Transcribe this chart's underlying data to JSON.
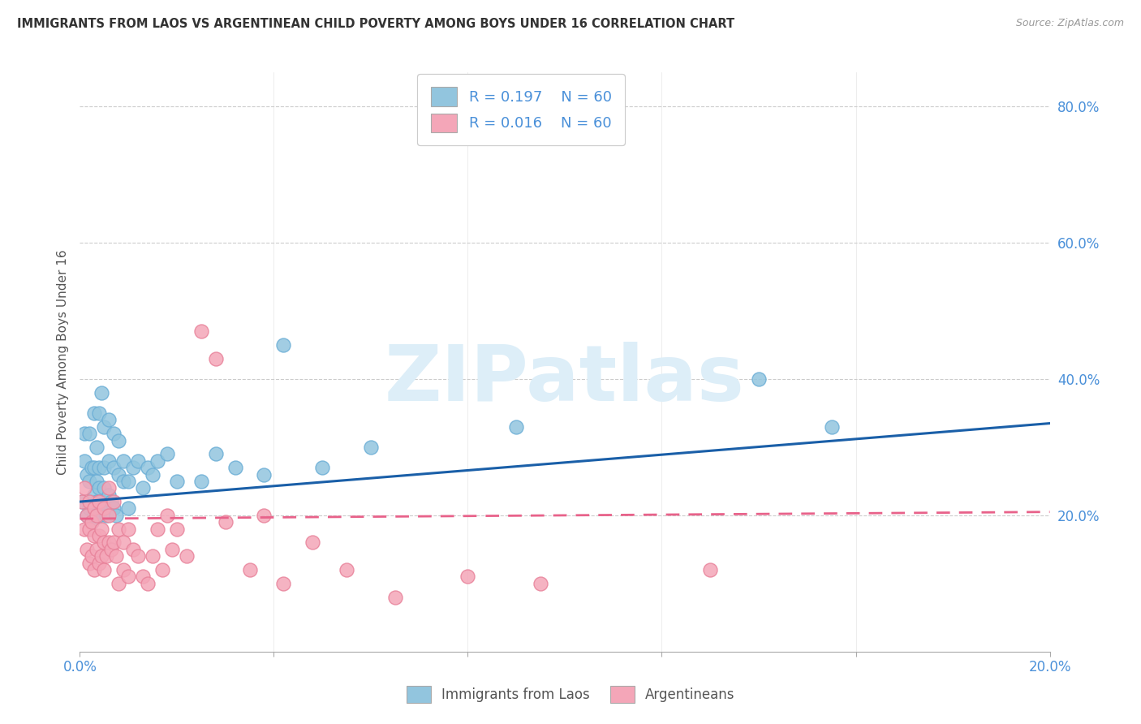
{
  "title": "IMMIGRANTS FROM LAOS VS ARGENTINEAN CHILD POVERTY AMONG BOYS UNDER 16 CORRELATION CHART",
  "source": "Source: ZipAtlas.com",
  "ylabel": "Child Poverty Among Boys Under 16",
  "xlim": [
    0.0,
    0.2
  ],
  "ylim": [
    0.0,
    0.85
  ],
  "blue_color": "#92c5de",
  "blue_color_edge": "#6baed6",
  "pink_color": "#f4a6b8",
  "pink_color_edge": "#e8829a",
  "blue_line_color": "#1a5fa8",
  "pink_line_color": "#e8628a",
  "watermark_text": "ZIPatlas",
  "watermark_color": "#ddeef8",
  "legend_label_blue": "Immigrants from Laos",
  "legend_label_pink": "Argentineans",
  "legend_r_blue": "R = 0.197",
  "legend_n_blue": "N = 60",
  "legend_r_pink": "R = 0.016",
  "legend_n_pink": "N = 60",
  "grid_color": "#cccccc",
  "background_color": "#ffffff",
  "tick_color": "#4a90d9",
  "blue_scatter_x": [
    0.0005,
    0.001,
    0.001,
    0.0015,
    0.0015,
    0.002,
    0.002,
    0.002,
    0.0025,
    0.0025,
    0.003,
    0.003,
    0.003,
    0.003,
    0.0035,
    0.0035,
    0.0035,
    0.004,
    0.004,
    0.004,
    0.004,
    0.0045,
    0.0045,
    0.005,
    0.005,
    0.005,
    0.005,
    0.0055,
    0.006,
    0.006,
    0.006,
    0.0065,
    0.007,
    0.007,
    0.007,
    0.0075,
    0.008,
    0.008,
    0.009,
    0.009,
    0.01,
    0.01,
    0.011,
    0.012,
    0.013,
    0.014,
    0.015,
    0.016,
    0.018,
    0.02,
    0.025,
    0.028,
    0.032,
    0.038,
    0.042,
    0.05,
    0.06,
    0.09,
    0.14,
    0.155
  ],
  "blue_scatter_y": [
    0.22,
    0.28,
    0.32,
    0.2,
    0.26,
    0.21,
    0.25,
    0.32,
    0.19,
    0.27,
    0.2,
    0.23,
    0.27,
    0.35,
    0.22,
    0.25,
    0.3,
    0.2,
    0.24,
    0.27,
    0.35,
    0.22,
    0.38,
    0.21,
    0.24,
    0.27,
    0.33,
    0.2,
    0.23,
    0.28,
    0.34,
    0.22,
    0.21,
    0.27,
    0.32,
    0.2,
    0.26,
    0.31,
    0.25,
    0.28,
    0.21,
    0.25,
    0.27,
    0.28,
    0.24,
    0.27,
    0.26,
    0.28,
    0.29,
    0.25,
    0.25,
    0.29,
    0.27,
    0.26,
    0.45,
    0.27,
    0.3,
    0.33,
    0.4,
    0.33
  ],
  "pink_scatter_x": [
    0.0005,
    0.001,
    0.001,
    0.0015,
    0.0015,
    0.002,
    0.002,
    0.002,
    0.0025,
    0.0025,
    0.003,
    0.003,
    0.003,
    0.0035,
    0.0035,
    0.004,
    0.004,
    0.004,
    0.0045,
    0.0045,
    0.005,
    0.005,
    0.005,
    0.0055,
    0.006,
    0.006,
    0.006,
    0.0065,
    0.007,
    0.007,
    0.0075,
    0.008,
    0.008,
    0.009,
    0.009,
    0.01,
    0.01,
    0.011,
    0.012,
    0.013,
    0.014,
    0.015,
    0.016,
    0.017,
    0.018,
    0.019,
    0.02,
    0.022,
    0.025,
    0.028,
    0.03,
    0.035,
    0.038,
    0.042,
    0.048,
    0.055,
    0.065,
    0.08,
    0.095,
    0.13
  ],
  "pink_scatter_y": [
    0.22,
    0.18,
    0.24,
    0.15,
    0.2,
    0.13,
    0.18,
    0.22,
    0.14,
    0.19,
    0.12,
    0.17,
    0.21,
    0.15,
    0.2,
    0.13,
    0.17,
    0.22,
    0.14,
    0.18,
    0.12,
    0.16,
    0.21,
    0.14,
    0.16,
    0.2,
    0.24,
    0.15,
    0.16,
    0.22,
    0.14,
    0.1,
    0.18,
    0.12,
    0.16,
    0.11,
    0.18,
    0.15,
    0.14,
    0.11,
    0.1,
    0.14,
    0.18,
    0.12,
    0.2,
    0.15,
    0.18,
    0.14,
    0.47,
    0.43,
    0.19,
    0.12,
    0.2,
    0.1,
    0.16,
    0.12,
    0.08,
    0.11,
    0.1,
    0.12
  ],
  "blue_trend_x": [
    0.0,
    0.2
  ],
  "blue_trend_y": [
    0.22,
    0.335
  ],
  "pink_trend_x": [
    0.0,
    0.2
  ],
  "pink_trend_y": [
    0.195,
    0.205
  ]
}
